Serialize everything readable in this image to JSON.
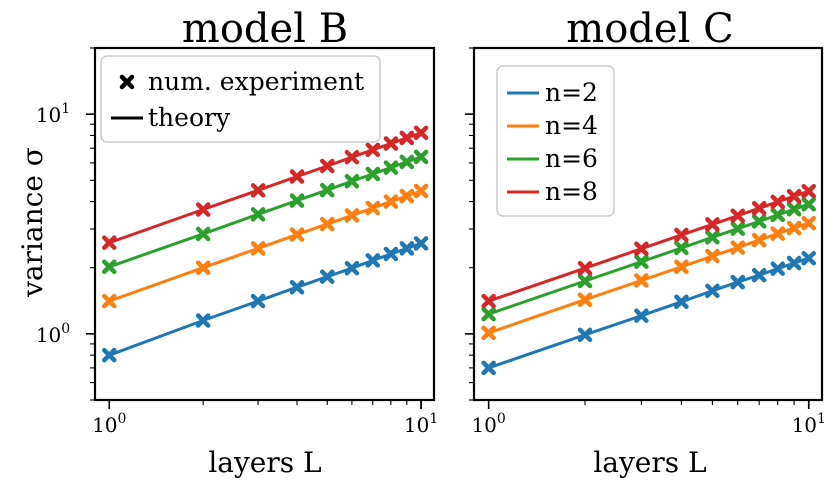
{
  "chart_data": [
    {
      "type": "line",
      "title": "model B",
      "xlabel": "layers L",
      "ylabel": "variance σ",
      "xscale": "log",
      "yscale": "log",
      "xlim": [
        0.9,
        11
      ],
      "ylim": [
        0.5,
        20
      ],
      "xticks": [
        {
          "base": "10",
          "exp": "0"
        },
        {
          "base": "10",
          "exp": "1"
        }
      ],
      "yticks": [
        {
          "base": "10",
          "exp": "0"
        },
        {
          "base": "10",
          "exp": "1"
        }
      ],
      "legend": {
        "location": "top-left",
        "entries": [
          {
            "label": "num. experiment",
            "marker": "x"
          },
          {
            "label": "theory",
            "marker": "line"
          }
        ]
      },
      "x": [
        1,
        2,
        3,
        4,
        5,
        6,
        7,
        8,
        9,
        10
      ],
      "series": [
        {
          "name": "n=2",
          "color": "#1f77b4",
          "values": [
            0.8,
            1.15,
            1.41,
            1.63,
            1.82,
            1.99,
            2.16,
            2.31,
            2.45,
            2.58
          ]
        },
        {
          "name": "n=4",
          "color": "#ff7f0e",
          "values": [
            1.41,
            2.0,
            2.45,
            2.83,
            3.16,
            3.46,
            3.74,
            4.0,
            4.24,
            4.47
          ]
        },
        {
          "name": "n=6",
          "color": "#2ca02c",
          "values": [
            2.02,
            2.85,
            3.5,
            4.04,
            4.51,
            4.95,
            5.34,
            5.71,
            6.06,
            6.39
          ]
        },
        {
          "name": "n=8",
          "color": "#d62728",
          "values": [
            2.6,
            3.68,
            4.5,
            5.2,
            5.81,
            6.37,
            6.88,
            7.35,
            7.8,
            8.22
          ]
        }
      ]
    },
    {
      "type": "line",
      "title": "model C",
      "xlabel": "layers L",
      "ylabel": "",
      "xscale": "log",
      "yscale": "log",
      "xlim": [
        0.9,
        11
      ],
      "ylim": [
        0.5,
        20
      ],
      "xticks": [
        {
          "base": "10",
          "exp": "0"
        },
        {
          "base": "10",
          "exp": "1"
        }
      ],
      "yticks": [],
      "legend": {
        "location": "top-left",
        "entries": [
          {
            "label": "n=2",
            "marker": "line",
            "color": "#1f77b4"
          },
          {
            "label": "n=4",
            "marker": "line",
            "color": "#ff7f0e"
          },
          {
            "label": "n=6",
            "marker": "line",
            "color": "#2ca02c"
          },
          {
            "label": "n=8",
            "marker": "line",
            "color": "#d62728"
          }
        ]
      },
      "x": [
        1,
        2,
        3,
        4,
        5,
        6,
        7,
        8,
        9,
        10
      ],
      "series": [
        {
          "name": "n=2",
          "color": "#1f77b4",
          "values": [
            0.7,
            0.99,
            1.21,
            1.4,
            1.57,
            1.72,
            1.85,
            1.98,
            2.1,
            2.21
          ]
        },
        {
          "name": "n=4",
          "color": "#ff7f0e",
          "values": [
            1.01,
            1.43,
            1.75,
            2.02,
            2.26,
            2.47,
            2.67,
            2.86,
            3.03,
            3.19
          ]
        },
        {
          "name": "n=6",
          "color": "#2ca02c",
          "values": [
            1.23,
            1.74,
            2.13,
            2.46,
            2.75,
            3.01,
            3.25,
            3.48,
            3.69,
            3.89
          ]
        },
        {
          "name": "n=8",
          "color": "#d62728",
          "values": [
            1.41,
            1.99,
            2.44,
            2.82,
            3.15,
            3.45,
            3.73,
            3.99,
            4.23,
            4.46
          ]
        }
      ]
    }
  ]
}
